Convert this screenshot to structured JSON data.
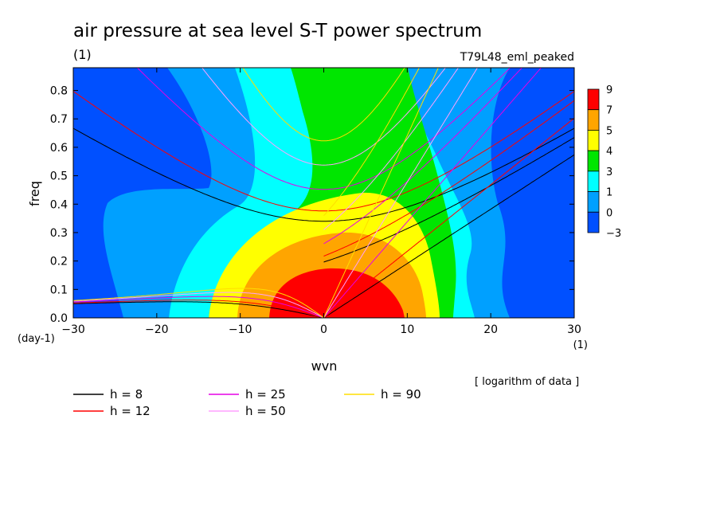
{
  "chart_data": {
    "type": "heatmap",
    "title": "air pressure at sea level S-T power spectrum",
    "subtitle": "(1)",
    "run_label": "T79L48_eml_peaked",
    "xlabel": "wvn",
    "ylabel": "freq",
    "x_unit": "(1)",
    "y_unit": "(day-1)",
    "note": "[ logarithm of data ]",
    "xlim": [
      -30,
      30
    ],
    "ylim": [
      0,
      0.88
    ],
    "x_ticks": [
      -30,
      -20,
      -10,
      0,
      10,
      20,
      30
    ],
    "x_tick_labels": [
      "-30",
      "-20",
      "-10",
      "0",
      "10",
      "20",
      "30"
    ],
    "y_ticks": [
      0,
      0.1,
      0.2,
      0.3,
      0.4,
      0.5,
      0.6,
      0.7,
      0.8
    ],
    "y_tick_labels": [
      "0.0",
      "0.1",
      "0.2",
      "0.3",
      "0.4",
      "0.5",
      "0.6",
      "0.7",
      "0.8"
    ],
    "colorbar": {
      "labels": [
        "9",
        "7",
        "5",
        "4",
        "3",
        "1",
        "0",
        "-3"
      ],
      "colors": [
        "#ff0000",
        "#ffa500",
        "#ffff00",
        "#00e600",
        "#00ffff",
        "#00a0ff",
        "#0050ff"
      ]
    },
    "dispersion_curves": [
      {
        "name": "h =  8",
        "color": "#000000"
      },
      {
        "name": "h = 12",
        "color": "#ff0000"
      },
      {
        "name": "h = 25",
        "color": "#e600e6"
      },
      {
        "name": "h = 50",
        "color": "#ffa0ff"
      },
      {
        "name": "h = 90",
        "color": "#ffdd00"
      }
    ]
  }
}
